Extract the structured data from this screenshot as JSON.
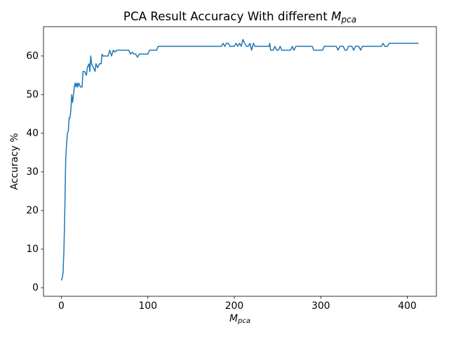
{
  "chart_data": {
    "type": "line",
    "title": "PCA Result Accuracy With different",
    "title_symbol": "M",
    "title_subscript": "pca",
    "x_label_symbol": "M",
    "x_label_subscript": "pca",
    "y_label": "Accuracy %",
    "color": "#1f77b4",
    "x": [
      0,
      1,
      2,
      3,
      4,
      5,
      6,
      7,
      8,
      9,
      10,
      11,
      12,
      13,
      14,
      15,
      16,
      17,
      18,
      19,
      20,
      22,
      24,
      25,
      27,
      29,
      30,
      32,
      33,
      34,
      35,
      37,
      39,
      40,
      42,
      44,
      46,
      47,
      48,
      50,
      52,
      54,
      56,
      58,
      60,
      62,
      64,
      66,
      70,
      75,
      78,
      80,
      82,
      84,
      86,
      88,
      90,
      95,
      100,
      102,
      110,
      112,
      150,
      185,
      187,
      189,
      191,
      193,
      195,
      200,
      202,
      204,
      206,
      208,
      210,
      212,
      214,
      216,
      218,
      220,
      222,
      224,
      240,
      241,
      242,
      245,
      247,
      249,
      251,
      253,
      255,
      265,
      267,
      269,
      271,
      290,
      292,
      302,
      304,
      318,
      320,
      322,
      326,
      328,
      330,
      332,
      336,
      338,
      340,
      344,
      346,
      348,
      370,
      372,
      374,
      377,
      379,
      413
    ],
    "values": [
      1.9,
      2.5,
      4,
      10,
      20,
      33,
      37,
      40,
      40.5,
      44,
      44,
      46,
      50,
      48,
      50,
      52,
      53,
      52,
      53,
      52,
      53,
      52,
      52,
      56,
      56,
      55,
      57,
      58,
      56,
      60,
      58,
      57,
      56,
      58,
      57,
      58,
      58,
      60.5,
      60,
      60,
      60,
      60,
      61.5,
      60,
      61.5,
      61,
      61.5,
      61.5,
      61.5,
      61.5,
      61.5,
      60.5,
      61,
      60.5,
      60.5,
      59.7,
      60.5,
      60.5,
      60.5,
      61.5,
      61.5,
      62.5,
      62.5,
      62.5,
      63.3,
      62.5,
      63.3,
      63.3,
      62.5,
      62.5,
      63.3,
      62.5,
      63.3,
      62.5,
      64.3,
      63.3,
      62.5,
      62.5,
      63.3,
      61.5,
      63.3,
      62.5,
      62.5,
      63.3,
      61.5,
      61.5,
      62.5,
      61.5,
      61.5,
      62.5,
      61.5,
      61.5,
      62.5,
      61.5,
      62.5,
      62.5,
      61.5,
      61.5,
      62.5,
      62.5,
      61.5,
      62.5,
      62.5,
      61.5,
      61.5,
      62.5,
      62.5,
      61.5,
      62.5,
      62.5,
      61.5,
      62.5,
      62.5,
      63.3,
      62.5,
      62.5,
      63.3,
      63.3
    ],
    "xlim": [
      -20.65,
      433.65
    ],
    "xticks": [
      0,
      100,
      200,
      300,
      400
    ],
    "ylim": [
      -2.2,
      67.6
    ],
    "yticks": [
      0,
      10,
      20,
      30,
      40,
      50,
      60
    ]
  }
}
